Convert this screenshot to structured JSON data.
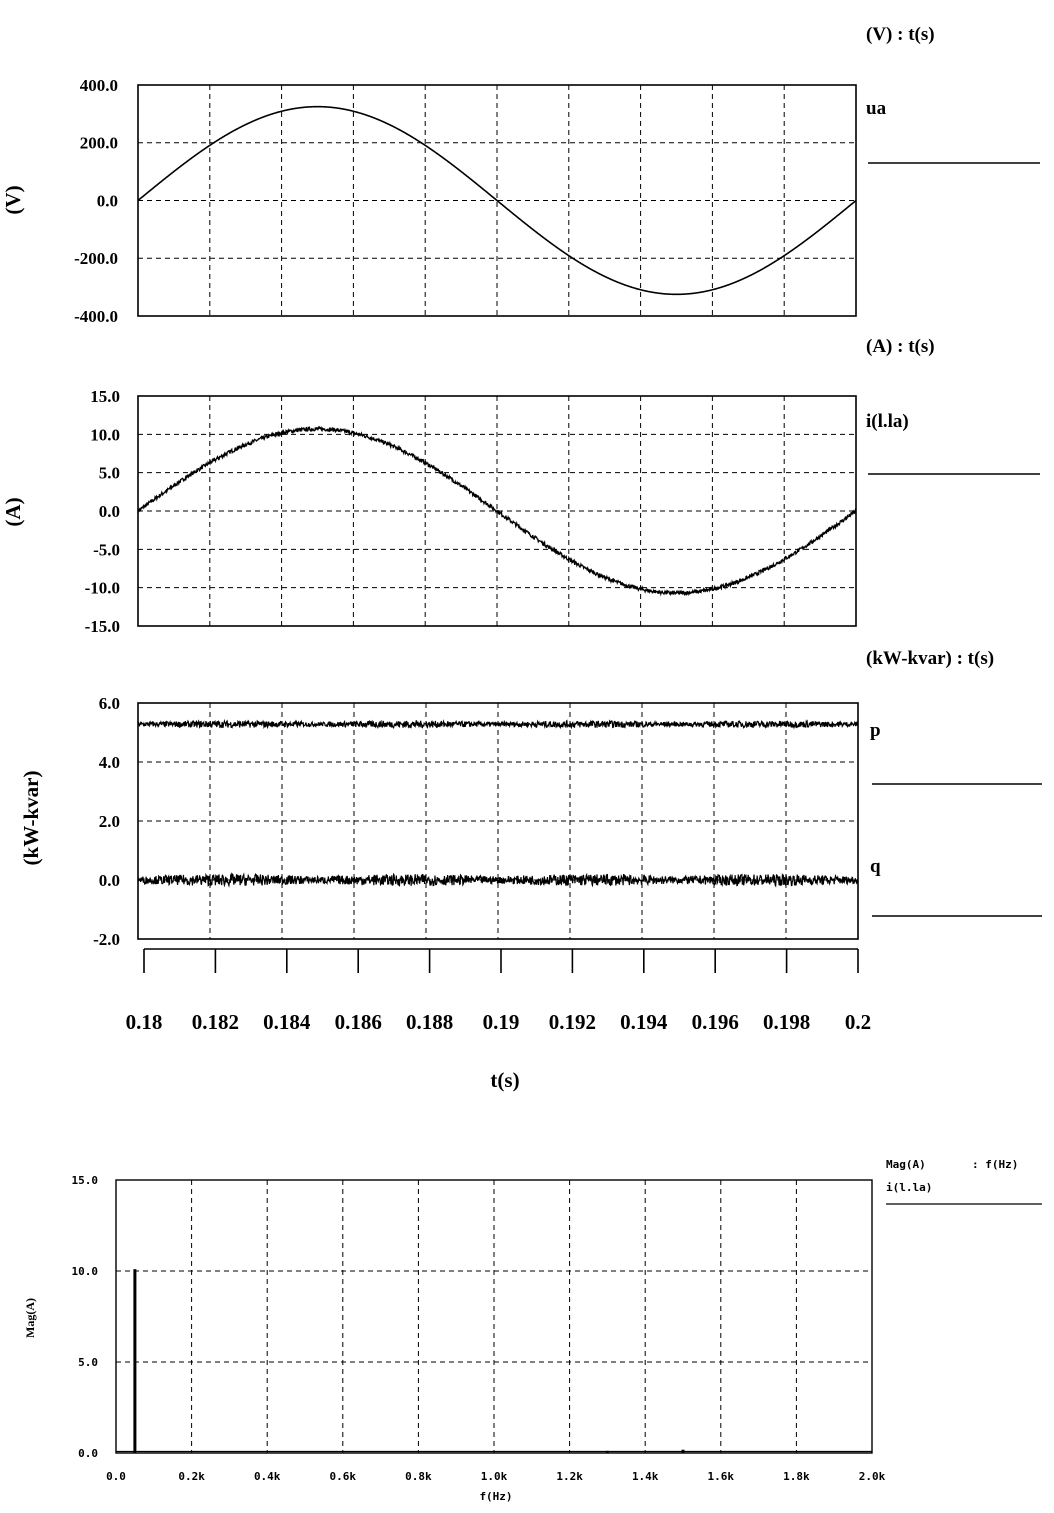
{
  "chart_data": [
    {
      "type": "line",
      "header": "(V)  :  t(s)",
      "ylabel": "(V)",
      "ylim": [
        -400,
        400
      ],
      "yticks": [
        400,
        200,
        0,
        -200,
        -400
      ],
      "ytick_labels": [
        "400.0",
        "200.0",
        "0.0",
        "-200.0",
        "-400.0"
      ],
      "xlim": [
        0.18,
        0.2
      ],
      "series": [
        {
          "name": "ua",
          "kind": "sine",
          "amplitude": 325,
          "frequency_hz": 50,
          "offset": 0,
          "noise": 0
        }
      ]
    },
    {
      "type": "line",
      "header": "(A)  :  t(s)",
      "ylabel": "(A)",
      "ylim": [
        -15,
        15
      ],
      "yticks": [
        15,
        10,
        5,
        0,
        -5,
        -10,
        -15
      ],
      "ytick_labels": [
        "15.0",
        "10.0",
        "5.0",
        "0.0",
        "-5.0",
        "-10.0",
        "-15.0"
      ],
      "xlim": [
        0.18,
        0.2
      ],
      "series": [
        {
          "name": "i(l.la)",
          "kind": "sine",
          "amplitude": 10.7,
          "frequency_hz": 50,
          "offset": 0,
          "noise": 0.25
        }
      ]
    },
    {
      "type": "line",
      "header": "(kW-kvar)     :  t(s)",
      "ylabel": "(kW-kvar)",
      "ylim": [
        -2,
        6
      ],
      "yticks": [
        6,
        4,
        2,
        0,
        -2
      ],
      "ytick_labels": [
        "6.0",
        "4.0",
        "2.0",
        "0.0",
        "-2.0"
      ],
      "xlim": [
        0.18,
        0.2
      ],
      "xticks": [
        0.18,
        0.182,
        0.184,
        0.186,
        0.188,
        0.19,
        0.192,
        0.194,
        0.196,
        0.198,
        0.2
      ],
      "xtick_labels": [
        "0.18",
        "0.182",
        "0.184",
        "0.186",
        "0.188",
        "0.19",
        "0.192",
        "0.194",
        "0.196",
        "0.198",
        "0.2"
      ],
      "xlabel": "t(s)",
      "series": [
        {
          "name": "p",
          "kind": "constant",
          "value": 5.28,
          "noise": 0.12
        },
        {
          "name": "q",
          "kind": "constant",
          "value": 0.0,
          "noise": 0.2
        }
      ]
    },
    {
      "type": "bar",
      "header_left": "Mag(A)",
      "header_right": ":  f(Hz)",
      "legend": "i(l.la)",
      "ylabel": "Mag(A)",
      "xlabel": "f(Hz)",
      "ylim": [
        0,
        15
      ],
      "yticks": [
        15,
        10,
        5,
        0
      ],
      "ytick_labels": [
        "15.0",
        "10.0",
        "5.0",
        "0.0"
      ],
      "xlim": [
        0,
        2000
      ],
      "xticks": [
        0,
        200,
        400,
        600,
        800,
        1000,
        1200,
        1400,
        1600,
        1800,
        2000
      ],
      "xtick_labels": [
        "0.0",
        "0.2k",
        "0.4k",
        "0.6k",
        "0.8k",
        "1.0k",
        "1.2k",
        "1.4k",
        "1.6k",
        "1.8k",
        "2.0k"
      ],
      "bars": [
        {
          "f": 50,
          "mag": 10.1
        },
        {
          "f": 1300,
          "mag": 0.12
        },
        {
          "f": 1500,
          "mag": 0.18
        }
      ]
    }
  ]
}
